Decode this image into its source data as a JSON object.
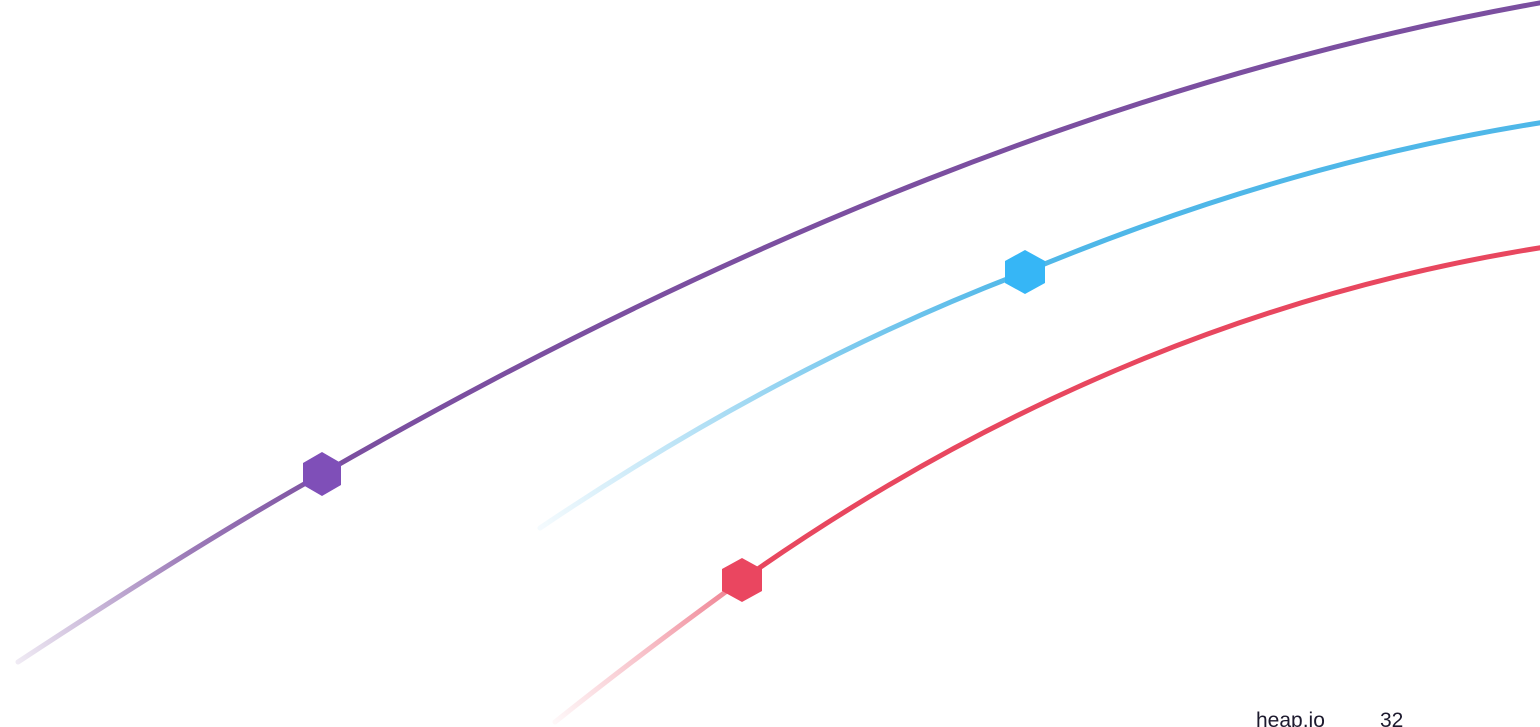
{
  "footer": {
    "site": "heap.io",
    "page_number": "32"
  },
  "decoration": {
    "colors": {
      "purple": "#7b4fa0",
      "purple_node": "#7f4fb8",
      "blue": "#4fb7e8",
      "blue_node": "#36b6f6",
      "red": "#e8475f",
      "red_node": "#ea4660"
    },
    "icons": [
      "hexagon-node-icon",
      "hexagon-node-icon",
      "hexagon-node-icon"
    ]
  }
}
